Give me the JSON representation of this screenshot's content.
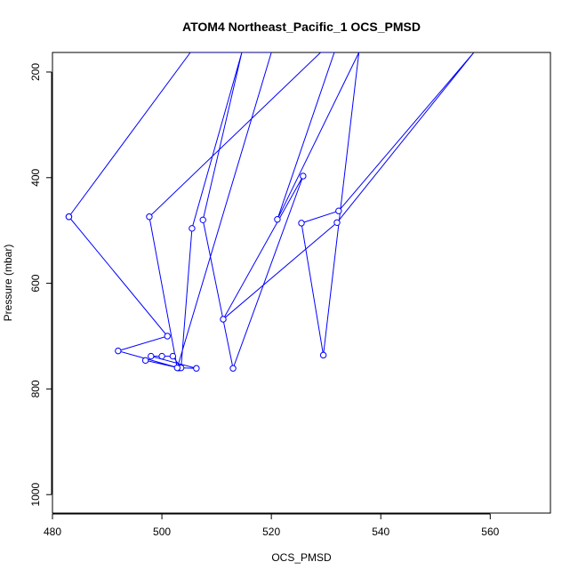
{
  "chart_data": {
    "type": "line",
    "title": "ATOM4 Northeast_Pacific_1 OCS_PMSD",
    "xlabel": "OCS_PMSD",
    "ylabel": "Pressure (mbar)",
    "xlim": [
      480,
      571
    ],
    "ylim": [
      1035,
      163
    ],
    "y_reversed": true,
    "x_ticks": [
      480,
      500,
      520,
      540,
      560
    ],
    "y_ticks": [
      200,
      400,
      600,
      800,
      1000
    ],
    "grid": false,
    "legend": "none",
    "series": [
      {
        "color": "#0000ff",
        "marker": "open-circle",
        "points": [
          [
            483.0,
            474
          ],
          [
            501.0,
            700
          ],
          [
            492.0,
            728
          ],
          [
            503.0,
            760
          ],
          [
            497.0,
            746
          ],
          [
            503.2,
            760
          ],
          [
            506.3,
            761
          ],
          [
            498.0,
            738
          ],
          [
            500.0,
            738
          ],
          [
            502.0,
            738
          ],
          [
            503.5,
            760
          ],
          [
            505.5,
            496
          ],
          [
            514.6,
            163
          ],
          [
            507.5,
            480
          ],
          [
            513.0,
            761
          ],
          [
            525.8,
            397
          ],
          [
            511.2,
            668
          ],
          [
            532.0,
            485
          ],
          [
            557.0,
            163
          ],
          [
            532.3,
            463
          ],
          [
            525.5,
            486
          ],
          [
            529.5,
            736
          ],
          [
            536.0,
            163
          ],
          [
            521.1,
            479
          ],
          [
            531.5,
            163
          ],
          [
            529.0,
            163
          ],
          [
            497.7,
            474
          ],
          [
            502.8,
            760
          ],
          [
            520.0,
            163
          ],
          [
            508.5,
            163
          ],
          [
            507.0,
            163
          ],
          [
            505.2,
            163
          ],
          [
            483.0,
            474
          ]
        ]
      }
    ]
  }
}
